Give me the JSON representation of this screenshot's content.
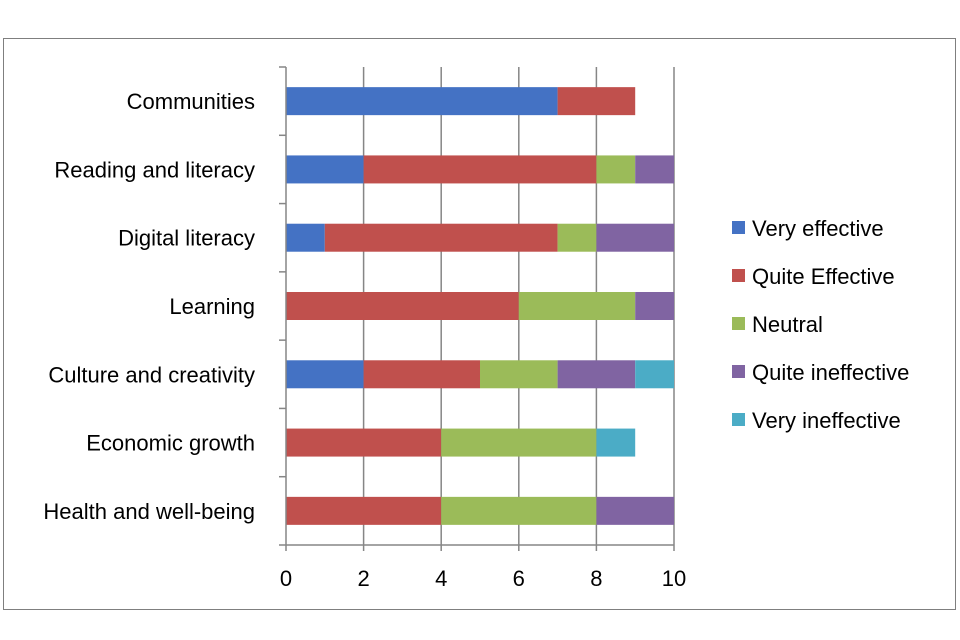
{
  "chart_data": {
    "type": "bar",
    "orientation": "horizontal",
    "stacked": true,
    "title": "",
    "xlabel": "",
    "ylabel": "",
    "xlim": [
      0,
      10
    ],
    "xticks": [
      "0",
      "2",
      "4",
      "6",
      "8",
      "10"
    ],
    "grid": "vertical",
    "legend_position": "right",
    "categories": [
      "Communities",
      "Reading and literacy",
      "Digital literacy",
      "Learning",
      "Culture and creativity",
      "Economic growth",
      "Health and well-being"
    ],
    "series": [
      {
        "name": "Very effective",
        "color": "#4472C4",
        "values": [
          7,
          2,
          1,
          0,
          2,
          0,
          0
        ]
      },
      {
        "name": "Quite Effective",
        "color": "#C0504D",
        "values": [
          2,
          6,
          6,
          6,
          3,
          4,
          4
        ]
      },
      {
        "name": "Neutral",
        "color": "#9BBB59",
        "values": [
          0,
          1,
          1,
          3,
          2,
          4,
          4
        ]
      },
      {
        "name": "Quite ineffective",
        "color": "#8064A2",
        "values": [
          0,
          1,
          2,
          1,
          2,
          0,
          2
        ]
      },
      {
        "name": "Very ineffective",
        "color": "#4BACC6",
        "values": [
          0,
          0,
          0,
          0,
          1,
          1,
          0
        ]
      }
    ]
  }
}
